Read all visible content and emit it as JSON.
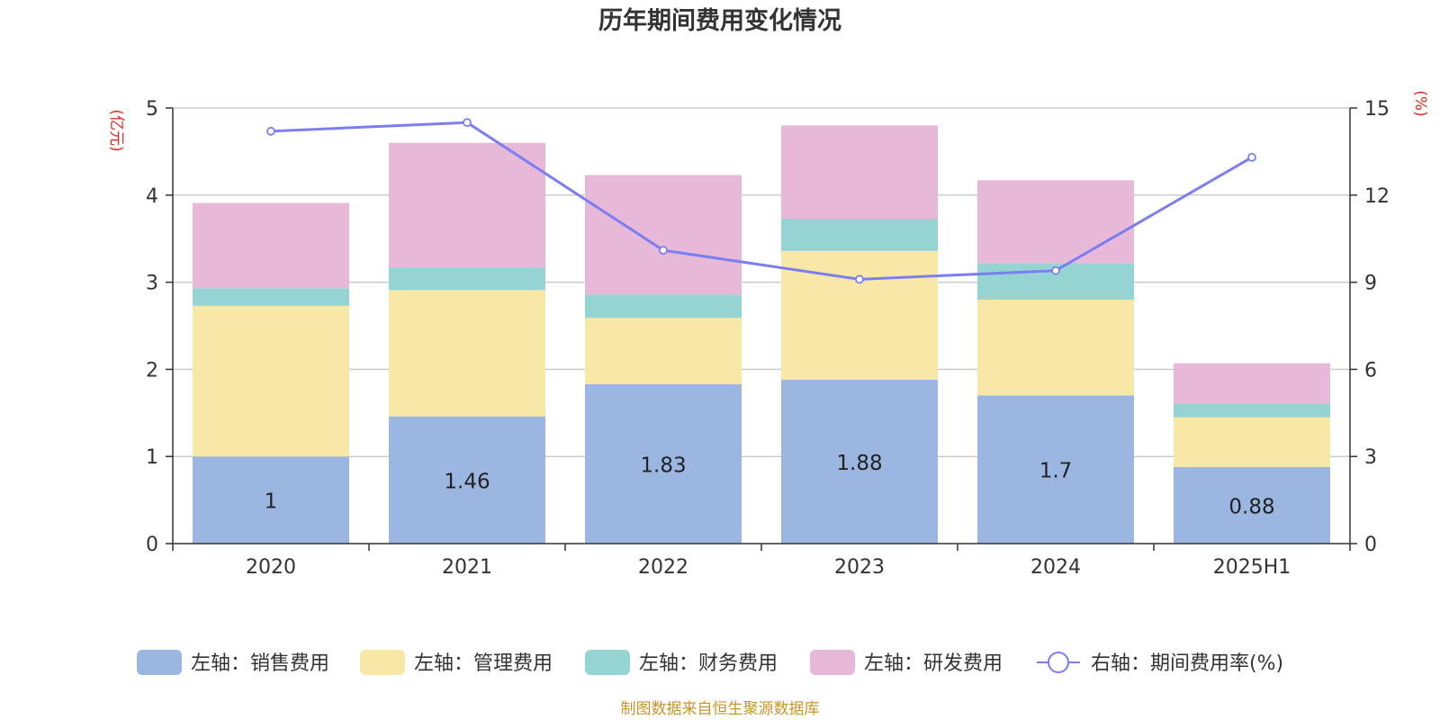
{
  "chart_data": {
    "type": "bar",
    "stacked": true,
    "title": "历年期间费用变化情况",
    "categories": [
      "2020",
      "2021",
      "2022",
      "2023",
      "2024",
      "2025H1"
    ],
    "left_axis": {
      "unit": "(亿元)",
      "ylim": [
        0,
        5
      ],
      "ticks": [
        "0",
        "1",
        "2",
        "3",
        "4",
        "5"
      ]
    },
    "right_axis": {
      "unit": "(%)",
      "ylim": [
        0,
        15
      ],
      "ticks": [
        "0",
        "3",
        "6",
        "9",
        "12",
        "15"
      ]
    },
    "series": [
      {
        "name": "左轴：销售费用",
        "axis": "left",
        "color": "#9bb7e1",
        "values": [
          1.0,
          1.46,
          1.83,
          1.88,
          1.7,
          0.88
        ],
        "labels": [
          "1",
          "1.46",
          "1.83",
          "1.88",
          "1.7",
          "0.88"
        ]
      },
      {
        "name": "左轴：管理费用",
        "axis": "left",
        "color": "#f8e8a8",
        "values": [
          1.73,
          1.45,
          0.76,
          1.48,
          1.1,
          0.57
        ]
      },
      {
        "name": "左轴：财务费用",
        "axis": "left",
        "color": "#96d4d4",
        "values": [
          0.2,
          0.26,
          0.27,
          0.37,
          0.42,
          0.16
        ]
      },
      {
        "name": "左轴：研发费用",
        "axis": "left",
        "color": "#e8b8d8",
        "values": [
          0.98,
          1.43,
          1.37,
          1.07,
          0.95,
          0.46
        ]
      },
      {
        "name": "右轴：期间费用率(%)",
        "axis": "right",
        "type": "line",
        "color": "#7b7ef0",
        "values": [
          14.2,
          14.5,
          10.1,
          9.1,
          9.4,
          13.3
        ]
      }
    ],
    "grid": true,
    "legend_position": "bottom"
  },
  "footer": {
    "source": "制图数据来自恒生聚源数据库"
  }
}
